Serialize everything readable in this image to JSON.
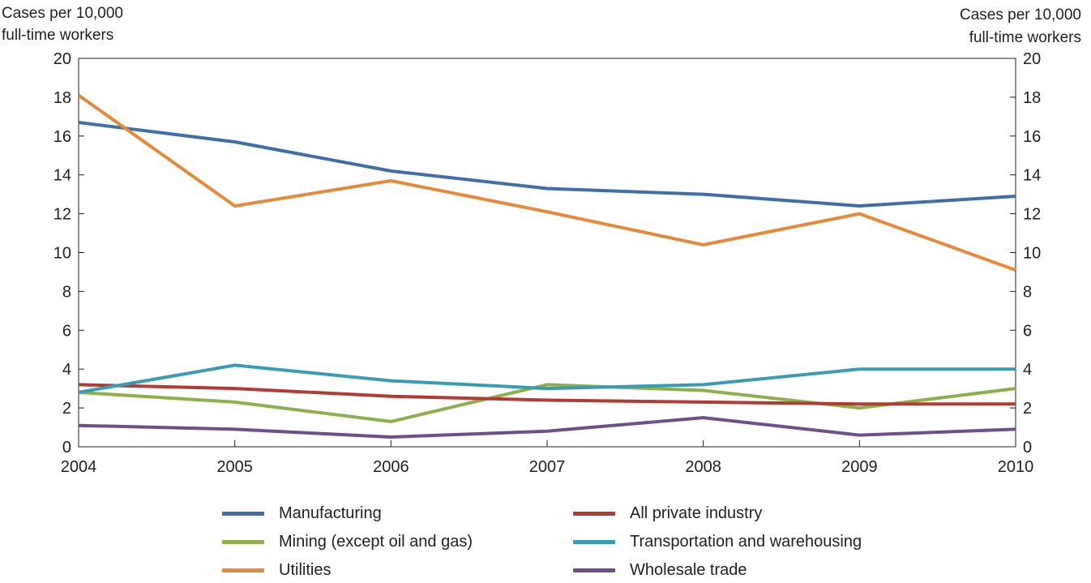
{
  "chart_data": {
    "type": "line",
    "title": "",
    "x": [
      "2004",
      "2005",
      "2006",
      "2007",
      "2008",
      "2009",
      "2010"
    ],
    "ylim": [
      0,
      20
    ],
    "yticks": [
      0,
      2,
      4,
      6,
      8,
      10,
      12,
      14,
      16,
      18,
      20
    ],
    "ytick_labels": [
      "0",
      "2",
      "4",
      "6",
      "8",
      "10",
      "12",
      "14",
      "16",
      "18",
      "20"
    ],
    "ylabel_left": [
      "Cases per 10,000",
      "full-time workers"
    ],
    "ylabel_right": [
      "Cases per 10,000",
      "full-time workers"
    ],
    "xlabel": "",
    "grid": false,
    "legend_position": "bottom",
    "series": [
      {
        "name": "Manufacturing",
        "color": "#3f6fa8",
        "values": [
          16.7,
          15.7,
          14.2,
          13.3,
          13.0,
          12.4,
          12.9
        ]
      },
      {
        "name": "All private industry",
        "color": "#b23b35",
        "values": [
          3.2,
          3.0,
          2.6,
          2.4,
          2.3,
          2.2,
          2.2
        ]
      },
      {
        "name": "Mining (except oil and gas)",
        "color": "#8db04a",
        "values": [
          2.8,
          2.3,
          1.3,
          3.2,
          2.9,
          2.0,
          3.0
        ]
      },
      {
        "name": "Transportation and warehousing",
        "color": "#3a9bb5",
        "values": [
          2.8,
          4.2,
          3.4,
          3.0,
          3.2,
          4.0,
          4.0
        ]
      },
      {
        "name": "Utilities",
        "color": "#e68a3a",
        "values": [
          18.1,
          12.4,
          13.7,
          12.1,
          10.4,
          12.0,
          9.1
        ]
      },
      {
        "name": "Wholesale trade",
        "color": "#6f4e8c",
        "values": [
          1.1,
          0.9,
          0.5,
          0.8,
          1.5,
          0.6,
          0.9
        ]
      }
    ]
  }
}
